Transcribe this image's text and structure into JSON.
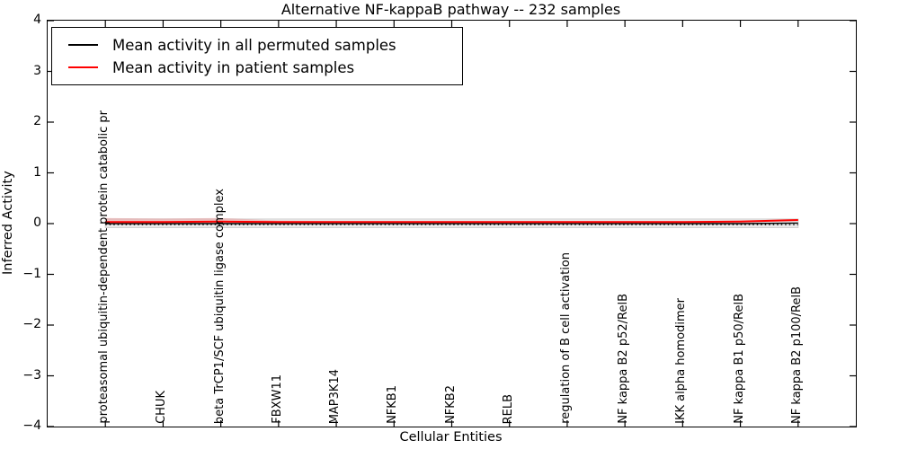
{
  "figure": {
    "title": "Alternative NF-kappaB pathway -- 232 samples",
    "xlabel": "Cellular Entities",
    "ylabel": "Inferred Activity"
  },
  "legend": {
    "position": "upper left",
    "items": [
      {
        "label": "Mean activity in all permuted samples",
        "color": "#000000"
      },
      {
        "label": "Mean activity in patient samples",
        "color": "#ff0000"
      }
    ]
  },
  "chart_data": {
    "type": "line",
    "title": "Alternative NF-kappaB pathway -- 232 samples",
    "xlabel": "Cellular Entities",
    "ylabel": "Inferred Activity",
    "ylim": [
      -4,
      4
    ],
    "ytick_values": [
      4,
      3,
      2,
      1,
      0,
      -1,
      -2,
      -3,
      -4
    ],
    "ytick_labels": [
      "4",
      "3",
      "2",
      "1",
      "0",
      "−1",
      "−2",
      "−3",
      "−4"
    ],
    "grid": false,
    "legend_position": "upper left",
    "categories": [
      "proteasomal ubiquitin-dependent protein catabolic pr",
      "CHUK",
      "beta TrCP1/SCF ubiquitin ligase complex",
      "FBXW11",
      "MAP3K14",
      "NFKB1",
      "NFKB2",
      "RELB",
      "regulation of B cell activation",
      "NF kappa B2 p52/RelB",
      "IKK alpha homodimer",
      "NF kappa B1 p50/RelB",
      "NF kappa B2 p100/RelB"
    ],
    "series": [
      {
        "name": "zero-baseline",
        "color": "#000000",
        "style": "dotted",
        "width": 1.2,
        "values": [
          -0.02,
          -0.02,
          -0.02,
          -0.02,
          -0.02,
          -0.02,
          -0.02,
          -0.02,
          -0.02,
          -0.02,
          -0.02,
          -0.02,
          -0.02
        ]
      },
      {
        "name": "Mean activity in all permuted samples",
        "color": "#000000",
        "style": "solid",
        "width": 1.4,
        "values": [
          0.0,
          0.0,
          0.0,
          0.0,
          0.0,
          0.0,
          0.0,
          0.0,
          0.0,
          0.0,
          0.0,
          0.0,
          0.01
        ]
      },
      {
        "name": "Mean activity in patient samples",
        "color": "#ff0000",
        "style": "solid",
        "width": 2,
        "values": [
          0.03,
          0.03,
          0.04,
          0.03,
          0.03,
          0.03,
          0.03,
          0.03,
          0.03,
          0.03,
          0.03,
          0.04,
          0.07
        ]
      }
    ],
    "bands": [
      {
        "name": "permuted-std-band",
        "fill": "#e8e8e8",
        "edge": "#d2d2d2",
        "upper": [
          0.09,
          0.09,
          0.09,
          0.09,
          0.09,
          0.09,
          0.09,
          0.09,
          0.09,
          0.09,
          0.09,
          0.09,
          0.09
        ],
        "lower": [
          -0.08,
          -0.08,
          -0.08,
          -0.08,
          -0.08,
          -0.08,
          -0.08,
          -0.08,
          -0.08,
          -0.08,
          -0.08,
          -0.08,
          -0.08
        ]
      },
      {
        "name": "patient-std-band",
        "fill": "rgba(255,0,0,0.16)",
        "edge": "none",
        "upper": [
          0.11,
          0.1,
          0.11,
          0.06,
          0.05,
          0.05,
          0.05,
          0.05,
          0.05,
          0.05,
          0.05,
          0.06,
          0.09
        ],
        "lower": [
          0.03,
          0.03,
          0.04,
          0.03,
          0.03,
          0.03,
          0.03,
          0.03,
          0.03,
          0.03,
          0.03,
          0.04,
          0.07
        ]
      }
    ]
  }
}
